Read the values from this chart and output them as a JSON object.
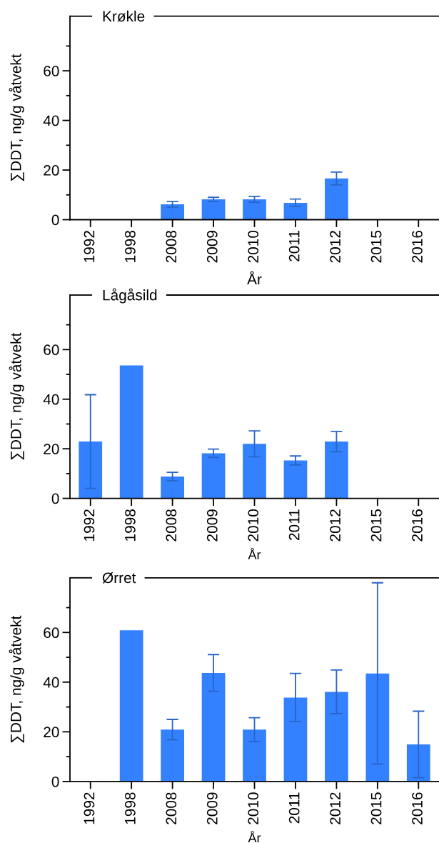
{
  "chart_data": [
    {
      "type": "bar",
      "title": "Krøkle",
      "xlabel": "År",
      "ylabel": "∑DDT, ng/g våtvekt",
      "categories": [
        "1992",
        "1998",
        "2008",
        "2009",
        "2010",
        "2011",
        "2012",
        "2015",
        "2016"
      ],
      "color": "#3381ff",
      "values": [
        null,
        null,
        6.2,
        8.2,
        8.2,
        6.8,
        16.6,
        null,
        null
      ],
      "errors": [
        null,
        null,
        1.1,
        0.8,
        1.2,
        1.5,
        2.6,
        null,
        null
      ],
      "ylim": [
        0,
        82
      ],
      "yticks": [
        0,
        {
          "value": 10,
          "label": null
        },
        20,
        {
          "value": 30,
          "label": null
        },
        40,
        {
          "value": 50,
          "label": null
        },
        60,
        {
          "value": 70,
          "label": null
        }
      ],
      "grid": false
    },
    {
      "type": "bar",
      "title": "Lågåsild",
      "xlabel": "År",
      "ylabel": "∑DDT, ng/g våtvekt",
      "categories": [
        "1992",
        "1998",
        "2008",
        "2009",
        "2010",
        "2011",
        "2012",
        "2015",
        "2016"
      ],
      "color": "#3381ff",
      "values": [
        22.9,
        53.6,
        8.8,
        18.2,
        22.0,
        15.3,
        22.9,
        null,
        null
      ],
      "errors": [
        18.9,
        null,
        1.7,
        1.7,
        5.2,
        1.8,
        4.1,
        null,
        null
      ],
      "ylim": [
        0,
        82
      ],
      "yticks": [
        0,
        {
          "value": 10,
          "label": null
        },
        20,
        {
          "value": 30,
          "label": null
        },
        40,
        {
          "value": 50,
          "label": null
        },
        60,
        {
          "value": 70,
          "label": null
        }
      ],
      "grid": false
    },
    {
      "type": "bar",
      "title": "Ørret",
      "xlabel": "År",
      "ylabel": "∑DDT, ng/g våtvekt",
      "categories": [
        "1992",
        "1998",
        "2008",
        "2009",
        "2010",
        "2011",
        "2012",
        "2015",
        "2016"
      ],
      "color": "#3381ff",
      "values": [
        null,
        60.9,
        20.9,
        43.7,
        20.9,
        33.8,
        36.1,
        43.5,
        14.9
      ],
      "errors": [
        null,
        null,
        4.1,
        7.4,
        4.8,
        9.7,
        8.8,
        36.5,
        13.4
      ],
      "ylim": [
        0,
        82
      ],
      "yticks": [
        0,
        {
          "value": 10,
          "label": null
        },
        20,
        {
          "value": 30,
          "label": null
        },
        40,
        {
          "value": 50,
          "label": null
        },
        60,
        {
          "value": 70,
          "label": null
        }
      ],
      "grid": false
    }
  ]
}
